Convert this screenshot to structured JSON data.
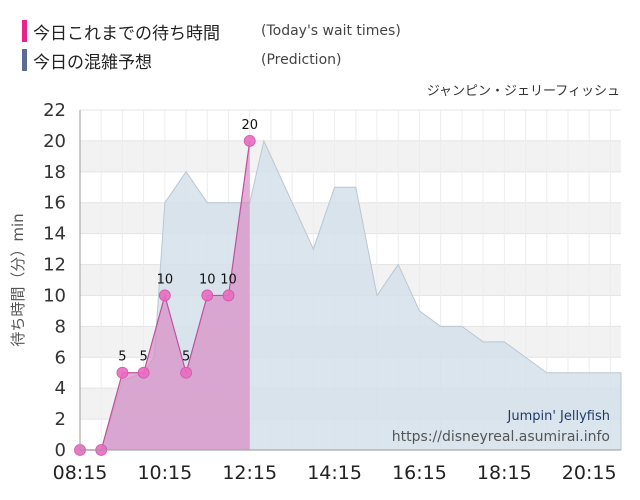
{
  "legend": [
    {
      "label": "今日これまでの待ち時間",
      "note": "(Today's wait times)",
      "color": "#e8248c"
    },
    {
      "label": "今日の混雑予想",
      "note": "(Prediction)",
      "color": "#5a6b96"
    }
  ],
  "subtitle": "ジャンピン・ジェリーフィッシュ",
  "watermark": {
    "title": "Jumpin' Jellyfish",
    "url": "https://disneyreal.asumirai.info"
  },
  "chart_data": {
    "type": "area",
    "ylabel": "待ち時間（分）min",
    "ylim": [
      0,
      22
    ],
    "yticks": [
      0,
      2,
      4,
      6,
      8,
      10,
      12,
      14,
      16,
      18,
      20,
      22
    ],
    "xlim": [
      "08:15",
      "21:00"
    ],
    "xticks": [
      "08:15",
      "10:15",
      "12:15",
      "14:15",
      "16:15",
      "18:15",
      "20:15"
    ],
    "grid": true,
    "series": [
      {
        "name": "今日の混雑予想",
        "color": "#d5e0ea",
        "points": [
          [
            "08:15",
            0
          ],
          [
            "08:45",
            0
          ],
          [
            "09:15",
            4.5
          ],
          [
            "09:45",
            5
          ],
          [
            "10:00",
            6
          ],
          [
            "10:15",
            16
          ],
          [
            "10:45",
            18
          ],
          [
            "11:15",
            16
          ],
          [
            "11:45",
            16
          ],
          [
            "12:15",
            16
          ],
          [
            "12:35",
            20
          ],
          [
            "13:15",
            16
          ],
          [
            "13:45",
            13
          ],
          [
            "14:15",
            17
          ],
          [
            "14:45",
            17
          ],
          [
            "15:15",
            10
          ],
          [
            "15:45",
            12
          ],
          [
            "16:15",
            9
          ],
          [
            "16:45",
            8
          ],
          [
            "17:15",
            8
          ],
          [
            "17:45",
            7
          ],
          [
            "18:15",
            7
          ],
          [
            "18:45",
            6
          ],
          [
            "19:15",
            5
          ],
          [
            "19:45",
            5
          ],
          [
            "20:15",
            5
          ],
          [
            "20:45",
            5
          ]
        ]
      },
      {
        "name": "今日これまでの待ち時間",
        "color": "#e8248c",
        "points": [
          [
            "08:15",
            0
          ],
          [
            "08:45",
            0
          ],
          [
            "09:15",
            5
          ],
          [
            "09:45",
            5
          ],
          [
            "10:15",
            10
          ],
          [
            "10:45",
            5
          ],
          [
            "11:15",
            10
          ],
          [
            "11:45",
            10
          ],
          [
            "12:15",
            20
          ]
        ],
        "labels": [
          "",
          "",
          "5",
          "5",
          "10",
          "5",
          "10",
          "10",
          "20"
        ]
      }
    ]
  }
}
